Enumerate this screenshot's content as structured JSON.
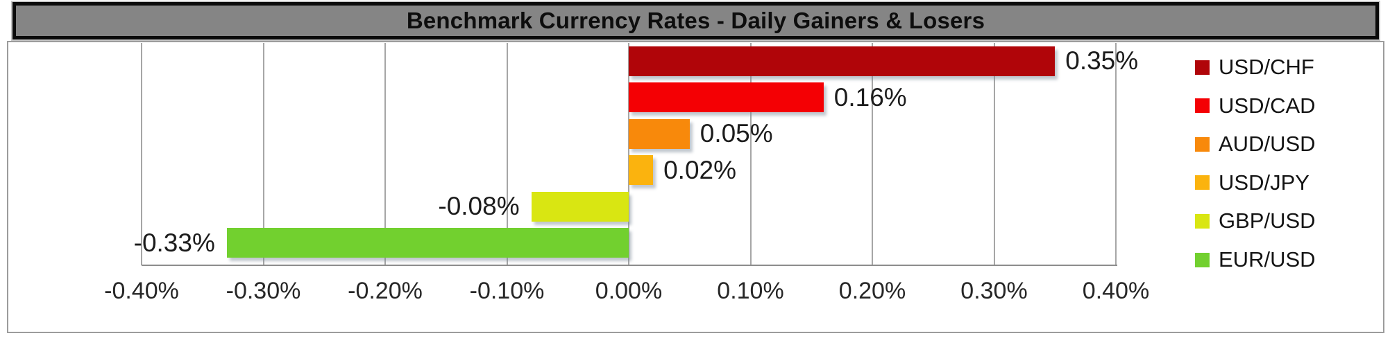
{
  "title": "Benchmark Currency Rates - Daily Gainers & Losers",
  "chart_data": {
    "type": "bar",
    "orientation": "horizontal",
    "title": "Benchmark Currency Rates - Daily Gainers & Losers",
    "categories": [
      "USD/CHF",
      "USD/CAD",
      "AUD/USD",
      "USD/JPY",
      "GBP/USD",
      "EUR/USD"
    ],
    "values": [
      0.35,
      0.16,
      0.05,
      0.02,
      -0.08,
      -0.33
    ],
    "value_labels": [
      "0.35%",
      "0.16%",
      "0.05%",
      "0.02%",
      "-0.08%",
      "-0.33%"
    ],
    "colors": [
      "#b00509",
      "#f40004",
      "#f8890b",
      "#fbb30e",
      "#d9e612",
      "#72d02f"
    ],
    "xlabel": "",
    "ylabel": "",
    "xlim": [
      -0.4,
      0.4
    ],
    "x_ticks": [
      "-0.40%",
      "-0.30%",
      "-0.20%",
      "-0.10%",
      "0.00%",
      "0.10%",
      "0.20%",
      "0.30%",
      "0.40%"
    ],
    "grid": true,
    "legend_position": "right"
  },
  "legend": {
    "items": [
      {
        "label": "USD/CHF",
        "color": "#b00509"
      },
      {
        "label": "USD/CAD",
        "color": "#f40004"
      },
      {
        "label": "AUD/USD",
        "color": "#f8890b"
      },
      {
        "label": "USD/JPY",
        "color": "#fbb30e"
      },
      {
        "label": "GBP/USD",
        "color": "#d9e612"
      },
      {
        "label": "EUR/USD",
        "color": "#72d02f"
      }
    ]
  },
  "colors": {
    "title_bg": "#858585",
    "title_text": "#0d0d0d",
    "gridline": "#a6a6a6",
    "axis_line": "#8c8c8c",
    "frame": "#9c9c9c",
    "label_text": "#1c1c1c"
  }
}
